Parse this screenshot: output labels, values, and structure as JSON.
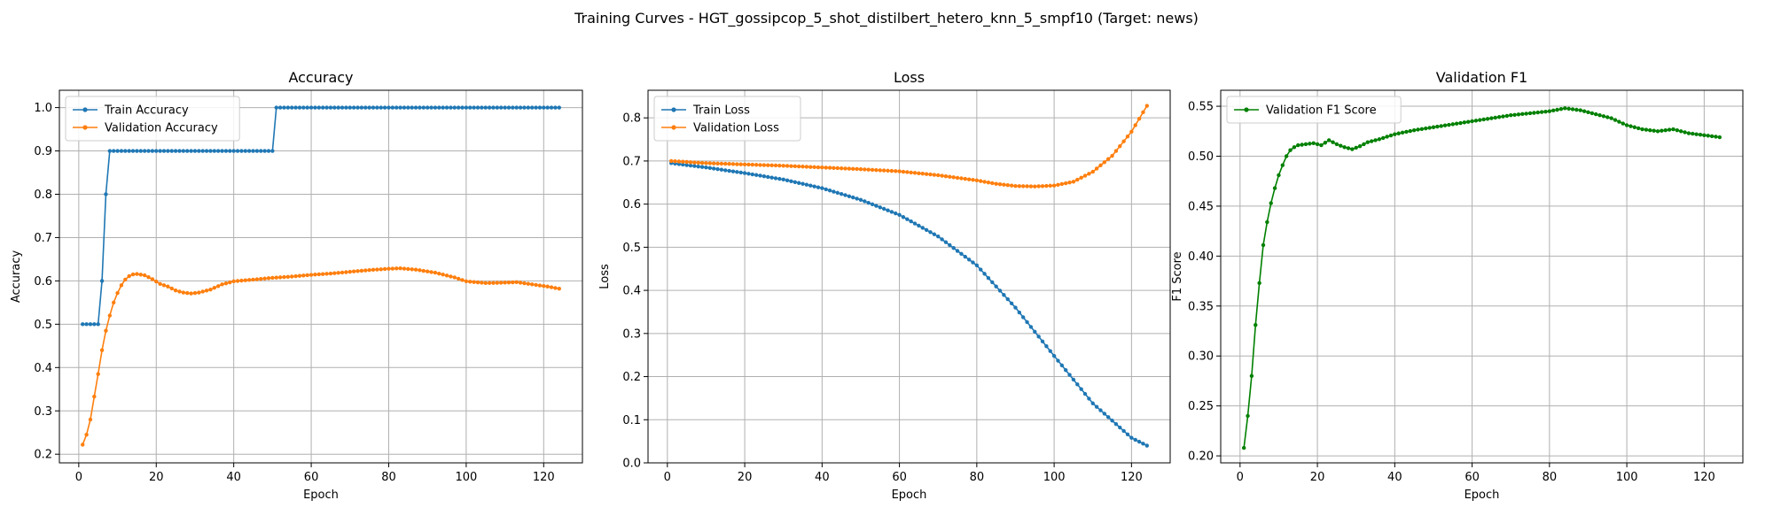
{
  "figure": {
    "suptitle": "Training Curves - HGT_gossipcop_5_shot_distilbert_hetero_knn_5_smpf10 (Target: news)"
  },
  "colors": {
    "train": "#1f77b4",
    "validation": "#ff7f0e",
    "f1": "#008000",
    "grid": "#b0b0b0"
  },
  "chart_data": [
    {
      "type": "line",
      "title": "Accuracy",
      "xlabel": "Epoch",
      "ylabel": "Accuracy",
      "xlim": [
        -5,
        130
      ],
      "ylim": [
        0.18,
        1.04
      ],
      "xticks": [
        0,
        20,
        40,
        60,
        80,
        100,
        120
      ],
      "yticks": [
        0.2,
        0.3,
        0.4,
        0.5,
        0.6,
        0.7,
        0.8,
        0.9,
        1.0
      ],
      "ytick_labels": [
        "0.2",
        "0.3",
        "0.4",
        "0.5",
        "0.6",
        "0.7",
        "0.8",
        "0.9",
        "1.0"
      ],
      "grid": true,
      "legend": "top-left",
      "series": [
        {
          "name": "Train Accuracy",
          "color": "#1f77b4",
          "epochs": 124,
          "points": [
            [
              1,
              0.5
            ],
            [
              5,
              0.5
            ],
            [
              6,
              0.6
            ],
            [
              7,
              0.8
            ],
            [
              8,
              0.9
            ],
            [
              50,
              0.9
            ],
            [
              51,
              1.0
            ],
            [
              124,
              1.0
            ]
          ],
          "interpolation": "step"
        },
        {
          "name": "Validation Accuracy",
          "color": "#ff7f0e",
          "epochs": 124,
          "points": [
            [
              1,
              0.222
            ],
            [
              2,
              0.245
            ],
            [
              3,
              0.28
            ],
            [
              4,
              0.333
            ],
            [
              5,
              0.385
            ],
            [
              6,
              0.44
            ],
            [
              7,
              0.485
            ],
            [
              8,
              0.52
            ],
            [
              9,
              0.55
            ],
            [
              10,
              0.572
            ],
            [
              11,
              0.59
            ],
            [
              12,
              0.603
            ],
            [
              13,
              0.611
            ],
            [
              14,
              0.615
            ],
            [
              15,
              0.616
            ],
            [
              17,
              0.613
            ],
            [
              19,
              0.604
            ],
            [
              21,
              0.593
            ],
            [
              23,
              0.587
            ],
            [
              25,
              0.578
            ],
            [
              27,
              0.573
            ],
            [
              29,
              0.571
            ],
            [
              31,
              0.573
            ],
            [
              34,
              0.58
            ],
            [
              37,
              0.592
            ],
            [
              40,
              0.599
            ],
            [
              45,
              0.603
            ],
            [
              50,
              0.607
            ],
            [
              55,
              0.61
            ],
            [
              60,
              0.614
            ],
            [
              65,
              0.617
            ],
            [
              70,
              0.621
            ],
            [
              75,
              0.625
            ],
            [
              80,
              0.628
            ],
            [
              83,
              0.629
            ],
            [
              87,
              0.626
            ],
            [
              92,
              0.619
            ],
            [
              97,
              0.608
            ],
            [
              100,
              0.599
            ],
            [
              105,
              0.595
            ],
            [
              110,
              0.596
            ],
            [
              113,
              0.597
            ],
            [
              117,
              0.592
            ],
            [
              121,
              0.587
            ],
            [
              124,
              0.582
            ]
          ],
          "interpolation": "linear"
        }
      ]
    },
    {
      "type": "line",
      "title": "Loss",
      "xlabel": "Epoch",
      "ylabel": "Loss",
      "xlim": [
        -5,
        130
      ],
      "ylim": [
        0.0,
        0.864
      ],
      "xticks": [
        0,
        20,
        40,
        60,
        80,
        100,
        120
      ],
      "yticks": [
        0.0,
        0.1,
        0.2,
        0.3,
        0.4,
        0.5,
        0.6,
        0.7,
        0.8
      ],
      "ytick_labels": [
        "0.0",
        "0.1",
        "0.2",
        "0.3",
        "0.4",
        "0.5",
        "0.6",
        "0.7",
        "0.8"
      ],
      "grid": true,
      "legend": "top-left",
      "series": [
        {
          "name": "Train Loss",
          "color": "#1f77b4",
          "epochs": 124,
          "points": [
            [
              1,
              0.695
            ],
            [
              10,
              0.685
            ],
            [
              20,
              0.672
            ],
            [
              30,
              0.657
            ],
            [
              40,
              0.637
            ],
            [
              50,
              0.61
            ],
            [
              60,
              0.575
            ],
            [
              70,
              0.525
            ],
            [
              80,
              0.458
            ],
            [
              90,
              0.36
            ],
            [
              100,
              0.248
            ],
            [
              110,
              0.138
            ],
            [
              120,
              0.058
            ],
            [
              124,
              0.04
            ]
          ],
          "interpolation": "linear"
        },
        {
          "name": "Validation Loss",
          "color": "#ff7f0e",
          "epochs": 124,
          "points": [
            [
              1,
              0.7
            ],
            [
              10,
              0.695
            ],
            [
              20,
              0.692
            ],
            [
              30,
              0.689
            ],
            [
              40,
              0.685
            ],
            [
              50,
              0.681
            ],
            [
              60,
              0.676
            ],
            [
              70,
              0.667
            ],
            [
              80,
              0.655
            ],
            [
              85,
              0.647
            ],
            [
              90,
              0.642
            ],
            [
              95,
              0.641
            ],
            [
              100,
              0.643
            ],
            [
              105,
              0.652
            ],
            [
              110,
              0.675
            ],
            [
              115,
              0.712
            ],
            [
              120,
              0.768
            ],
            [
              124,
              0.828
            ]
          ],
          "interpolation": "linear"
        }
      ]
    },
    {
      "type": "line",
      "title": "Validation F1",
      "xlabel": "Epoch",
      "ylabel": "F1 Score",
      "xlim": [
        -5,
        130
      ],
      "ylim": [
        0.193,
        0.566
      ],
      "xticks": [
        0,
        20,
        40,
        60,
        80,
        100,
        120
      ],
      "yticks": [
        0.2,
        0.25,
        0.3,
        0.35,
        0.4,
        0.45,
        0.5,
        0.55
      ],
      "ytick_labels": [
        "0.20",
        "0.25",
        "0.30",
        "0.35",
        "0.40",
        "0.45",
        "0.50",
        "0.55"
      ],
      "grid": true,
      "legend": "top-left",
      "series": [
        {
          "name": "Validation F1 Score",
          "color": "#008000",
          "epochs": 124,
          "points": [
            [
              1,
              0.208
            ],
            [
              2,
              0.24
            ],
            [
              3,
              0.28
            ],
            [
              4,
              0.331
            ],
            [
              5,
              0.373
            ],
            [
              6,
              0.411
            ],
            [
              7,
              0.434
            ],
            [
              8,
              0.453
            ],
            [
              9,
              0.468
            ],
            [
              10,
              0.481
            ],
            [
              11,
              0.491
            ],
            [
              12,
              0.5
            ],
            [
              13,
              0.506
            ],
            [
              14,
              0.509
            ],
            [
              15,
              0.511
            ],
            [
              17,
              0.512
            ],
            [
              19,
              0.513
            ],
            [
              21,
              0.511
            ],
            [
              23,
              0.516
            ],
            [
              25,
              0.512
            ],
            [
              27,
              0.509
            ],
            [
              29,
              0.507
            ],
            [
              31,
              0.51
            ],
            [
              33,
              0.514
            ],
            [
              36,
              0.517
            ],
            [
              40,
              0.522
            ],
            [
              45,
              0.526
            ],
            [
              50,
              0.529
            ],
            [
              55,
              0.532
            ],
            [
              60,
              0.535
            ],
            [
              65,
              0.538
            ],
            [
              70,
              0.541
            ],
            [
              75,
              0.543
            ],
            [
              80,
              0.545
            ],
            [
              84,
              0.548
            ],
            [
              88,
              0.546
            ],
            [
              92,
              0.542
            ],
            [
              96,
              0.538
            ],
            [
              100,
              0.531
            ],
            [
              104,
              0.527
            ],
            [
              108,
              0.525
            ],
            [
              112,
              0.527
            ],
            [
              116,
              0.523
            ],
            [
              120,
              0.521
            ],
            [
              124,
              0.519
            ]
          ],
          "interpolation": "linear"
        }
      ]
    }
  ]
}
